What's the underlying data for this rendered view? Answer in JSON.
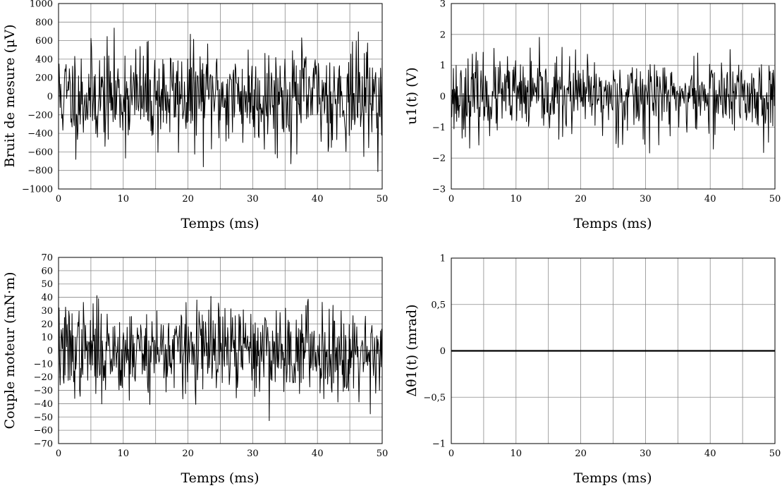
{
  "charts": [
    {
      "type": "line",
      "xlabel": "Temps (ms)",
      "ylabel": "Bruit de mesure (μV)",
      "xlim": [
        0,
        50
      ],
      "ylim": [
        -1000,
        1000
      ],
      "xticks": [
        "0",
        "10",
        "20",
        "30",
        "40",
        "50"
      ],
      "yticks": [
        "1000",
        "800",
        "600",
        "400",
        "200",
        "0",
        "−200",
        "−400",
        "−600",
        "−800",
        "−1000"
      ],
      "grid": true,
      "signal": {
        "kind": "noise",
        "amplitude": 270,
        "max_abs": 960,
        "samples": 600,
        "seed": 11
      }
    },
    {
      "type": "line",
      "xlabel": "Temps (ms)",
      "ylabel": "u1(t) (V)",
      "xlim": [
        0,
        50
      ],
      "ylim": [
        -3,
        3
      ],
      "xticks": [
        "0",
        "10",
        "20",
        "30",
        "40",
        "50"
      ],
      "yticks": [
        "3",
        "2",
        "1",
        "0",
        "−1",
        "−2",
        "−3"
      ],
      "grid": true,
      "signal": {
        "kind": "noise",
        "amplitude": 0.62,
        "max_abs": 2.5,
        "samples": 600,
        "seed": 23
      }
    },
    {
      "type": "line",
      "xlabel": "Temps (ms)",
      "ylabel": "Couple moteur (mN·m)",
      "xlim": [
        0,
        50
      ],
      "ylim": [
        -70,
        70
      ],
      "xticks": [
        "0",
        "10",
        "20",
        "30",
        "40",
        "50"
      ],
      "yticks": [
        "70",
        "60",
        "50",
        "40",
        "30",
        "20",
        "10",
        "0",
        "−10",
        "−20",
        "−30",
        "−40",
        "−50",
        "−60",
        "−70"
      ],
      "grid": true,
      "signal": {
        "kind": "noise",
        "amplitude": 17,
        "max_abs": 63,
        "samples": 600,
        "seed": 37
      }
    },
    {
      "type": "line",
      "xlabel": "Temps (ms)",
      "ylabel": "Δθ1(t) (mrad)",
      "xlim": [
        0,
        50
      ],
      "ylim": [
        -1,
        1
      ],
      "xticks": [
        "0",
        "10",
        "20",
        "30",
        "40",
        "50"
      ],
      "yticks": [
        "1",
        "0,5",
        "0",
        "−0,5",
        "−1"
      ],
      "grid": true,
      "signal": {
        "kind": "constant",
        "value": 0
      }
    }
  ]
}
